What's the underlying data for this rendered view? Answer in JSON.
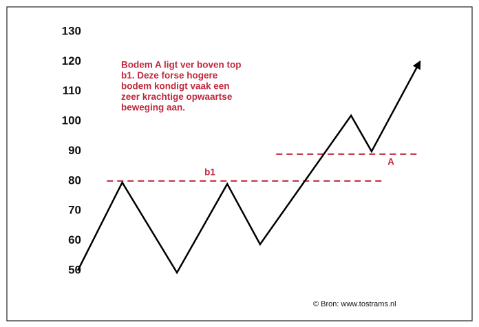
{
  "chart_data": {
    "type": "line",
    "annotation": [
      "Bodem A ligt ver boven top",
      "b1. Deze forse hogere",
      "bodem kondigt vaak een",
      "zeer krachtige opwaartse",
      "beweging aan."
    ],
    "source": "© Bron: www.tostrams.nl",
    "x": [
      0,
      13,
      29,
      43.7,
      53.3,
      79.9,
      85.9,
      100
    ],
    "series": [
      {
        "color": "#000000",
        "values": [
          50,
          79.5,
          49.3,
          79,
          58.8,
          101.9,
          89.9,
          119.9
        ]
      }
    ],
    "reference_lines": [
      {
        "label": "b1",
        "value": 80,
        "x": [
          8.5,
          90
        ]
      },
      {
        "label": "A",
        "value": 89,
        "x": [
          58,
          100
        ]
      }
    ],
    "reference_color": "#c0283c",
    "xlim": [
      0,
      100
    ],
    "ylim": [
      50,
      130
    ],
    "yticks": [
      50,
      60,
      70,
      80,
      90,
      100,
      110,
      120,
      130
    ]
  }
}
